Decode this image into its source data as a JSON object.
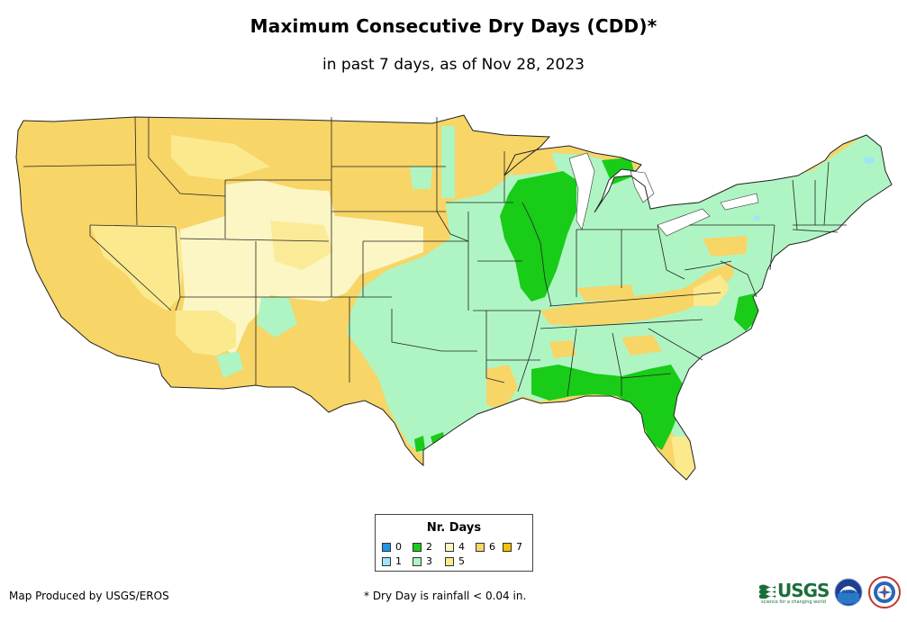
{
  "title": "Maximum Consecutive Dry Days (CDD)*",
  "subtitle": "in past 7 days, as of Nov 28, 2023",
  "legend": {
    "title": "Nr. Days",
    "items": [
      {
        "label": "0",
        "color": "#1e96e6"
      },
      {
        "label": "1",
        "color": "#9fe5f5"
      },
      {
        "label": "2",
        "color": "#18cc18"
      },
      {
        "label": "3",
        "color": "#aff5c3"
      },
      {
        "label": "4",
        "color": "#fbf6c3"
      },
      {
        "label": "5",
        "color": "#fbe98e"
      },
      {
        "label": "6",
        "color": "#f7d567"
      },
      {
        "label": "7",
        "color": "#f5c100"
      }
    ]
  },
  "footer": {
    "producer": "Map Produced by USGS/EROS",
    "note": "* Dry Day is rainfall < 0.04 in."
  },
  "logos": {
    "usgs": "USGS",
    "usgs_tagline": "science for a changing world",
    "noaa": "noaa",
    "nws": "NATIONAL WEATHER SERVICE"
  },
  "icons": [
    "usgs-logo-icon",
    "noaa-logo-icon",
    "nws-logo-icon"
  ]
}
